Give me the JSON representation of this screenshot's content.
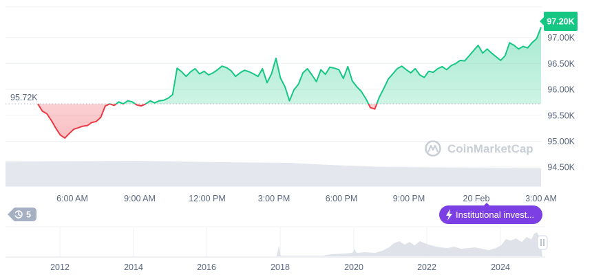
{
  "price_badge": {
    "text": "97.20K",
    "color": "#16c784"
  },
  "ref_label": "95.72K",
  "history_button": {
    "icon": "history-icon",
    "count": "5"
  },
  "news_pill": {
    "icon": "lightning-icon",
    "text": "Institutional invest...",
    "color": "#7b3fe4"
  },
  "watermark": "CoinMarketCap",
  "navigator": {
    "handle_icon": "pause-bars-icon",
    "year_labels": [
      "2012",
      "2014",
      "2016",
      "2018",
      "2020",
      "2022",
      "2024"
    ]
  },
  "colors": {
    "up": "#16c784",
    "down": "#ea3943"
  },
  "chart_data": {
    "type": "area",
    "x_tick_labels": [
      "6:00 AM",
      "9:00 AM",
      "12:00 PM",
      "3:00 PM",
      "6:00 PM",
      "9:00 PM",
      "20 Feb",
      "3:00 AM"
    ],
    "y_tick_labels": [
      "97.00K",
      "96.50K",
      "96.00K",
      "95.50K",
      "95.00K",
      "94.50K"
    ],
    "y_ticks": [
      97000,
      96500,
      96000,
      95500,
      95000,
      94500
    ],
    "ylim": [
      94250,
      97500
    ],
    "reference_value": 95720,
    "series": [
      {
        "values": [
          95720,
          95580,
          95530,
          95400,
          95250,
          95120,
          95060,
          95150,
          95230,
          95260,
          95290,
          95300,
          95360,
          95380,
          95460,
          95680,
          95720,
          95690,
          95760,
          95720,
          95780,
          95760,
          95700,
          95680,
          95720,
          95780,
          95740,
          95780,
          95790,
          95830,
          95900,
          96410,
          96340,
          96250,
          96340,
          96400,
          96300,
          96350,
          96280,
          96320,
          96380,
          96450,
          96420,
          96360,
          96250,
          96320,
          96370,
          96340,
          96300,
          96250,
          96400,
          96130,
          96300,
          96600,
          96220,
          96050,
          95780,
          95990,
          96100,
          96320,
          96400,
          96280,
          96150,
          96380,
          96290,
          96430,
          96410,
          96380,
          96210,
          96440,
          96160,
          96050,
          95960,
          95820,
          95650,
          95620,
          95850,
          96020,
          96200,
          96300,
          96400,
          96450,
          96380,
          96320,
          96400,
          96280,
          96230,
          96350,
          96330,
          96400,
          96440,
          96380,
          96460,
          96500,
          96560,
          96550,
          96650,
          96750,
          96850,
          96700,
          96780,
          96700,
          96630,
          96560,
          96650,
          96900,
          96850,
          96780,
          96830,
          96800,
          96900,
          96980,
          97200
        ]
      }
    ]
  }
}
